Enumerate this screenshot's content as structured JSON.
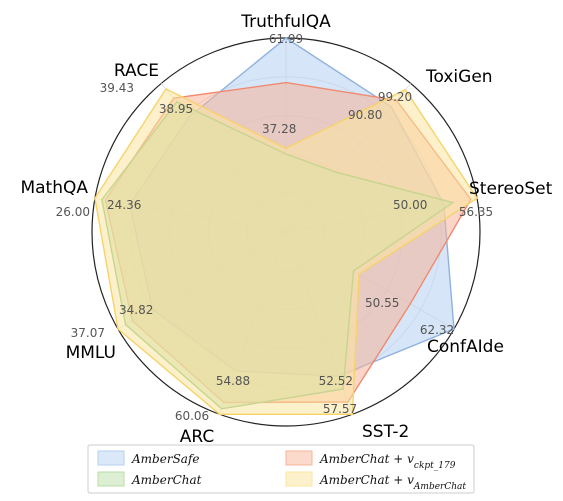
{
  "chart_data": {
    "type": "radar",
    "axes": [
      {
        "name": "TruthfulQA",
        "outer_label": "61.99",
        "inner_label": "37.28",
        "min": 37.28,
        "max": 61.99
      },
      {
        "name": "ToxiGen",
        "outer_label": "99.20",
        "inner_label": "90.80",
        "min": 90.8,
        "max": 99.2
      },
      {
        "name": "StereoSet",
        "outer_label": "56.35",
        "inner_label": "50.00",
        "min": 50.0,
        "max": 56.35
      },
      {
        "name": "ConfAIde",
        "outer_label": "62.32",
        "inner_label": "50.55",
        "min": 50.55,
        "max": 62.32
      },
      {
        "name": "SST-2",
        "outer_label": "57.57",
        "inner_label": "52.52",
        "min": 52.52,
        "max": 57.57
      },
      {
        "name": "ARC",
        "outer_label": "60.06",
        "inner_label": "54.88",
        "min": 54.88,
        "max": 60.06
      },
      {
        "name": "MMLU",
        "outer_label": "37.07",
        "inner_label": "34.82",
        "min": 34.82,
        "max": 37.07
      },
      {
        "name": "MathQA",
        "outer_label": "26.00",
        "inner_label": "24.36",
        "min": 24.36,
        "max": 26.0
      },
      {
        "name": "RACE",
        "outer_label": "39.43",
        "inner_label": "38.95",
        "min": 38.95,
        "max": 39.43
      }
    ],
    "series": [
      {
        "name_parts": [
          "AmberSafe"
        ],
        "color": "#b4cff0",
        "stroke": "#8fb2e0",
        "values": [
          61.99,
          97.0,
          54.5,
          62.32,
          55.8,
          58.0,
          36.3,
          25.5,
          39.25
        ]
      },
      {
        "name_parts": [
          "AmberChat + v",
          "ckpt_179"
        ],
        "color": "#f7b49a",
        "stroke": "#f08a6e",
        "values": [
          52.5,
          97.6,
          56.0,
          57.2,
          57.0,
          59.5,
          36.75,
          25.85,
          39.35
        ]
      },
      {
        "name_parts": [
          "AmberChat"
        ],
        "color": "#b8dca8",
        "stroke": "#88c07a",
        "values": [
          37.28,
          90.8,
          55.0,
          50.55,
          56.4,
          59.8,
          36.9,
          25.9,
          39.33
        ]
      },
      {
        "name_parts": [
          "AmberChat + v",
          "AmberChat"
        ],
        "color": "#fbe6a0",
        "stroke": "#f6d36a",
        "values": [
          38.5,
          98.6,
          56.35,
          51.2,
          57.57,
          60.06,
          37.07,
          26.0,
          39.4
        ]
      }
    ],
    "grid": true,
    "legend_position": "bottom",
    "legend": [
      {
        "text": "AmberSafe",
        "sub": "",
        "color": "#dbe8f8",
        "border": "#b4cff0"
      },
      {
        "text": "AmberChat + v",
        "sub": "ckpt_179",
        "color": "#fbd9cb",
        "border": "#f7b49a"
      },
      {
        "text": "AmberChat",
        "sub": "",
        "color": "#dcefd2",
        "border": "#b8dca8"
      },
      {
        "text": "AmberChat + v",
        "sub": "AmberChat",
        "color": "#fdf1cc",
        "border": "#fbe6a0"
      }
    ]
  }
}
